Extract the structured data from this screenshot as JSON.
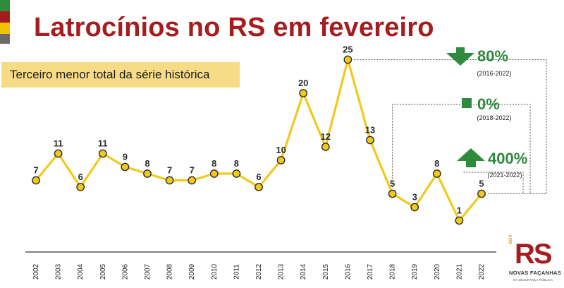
{
  "header": {
    "title": "Latrocínios no RS em fevereiro",
    "subtitle": "Terceiro menor total da série histórica"
  },
  "chart_data": {
    "type": "line",
    "title": "Latrocínios no RS em fevereiro",
    "subtitle": "Terceiro menor total da série histórica",
    "categories": [
      "2002",
      "2003",
      "2004",
      "2005",
      "2006",
      "2007",
      "2008",
      "2009",
      "2010",
      "2011",
      "2012",
      "2013",
      "2014",
      "2015",
      "2016",
      "2017",
      "2018",
      "2019",
      "2020",
      "2021",
      "2022"
    ],
    "series": [
      {
        "values": [
          7,
          11,
          6,
          11,
          9,
          8,
          7,
          7,
          8,
          8,
          6,
          10,
          20,
          12,
          25,
          13,
          5,
          3,
          8,
          1,
          5
        ]
      }
    ],
    "ylim": [
      0,
      25
    ],
    "grid": false,
    "colors": {
      "line": "#f2c91b",
      "marker_stroke": "#2b2b2b",
      "marker_fill": "#f2c91b",
      "label": "#2b2b2b",
      "axis": "#333333"
    },
    "comparisons": [
      {
        "value": "80%",
        "period": "(2016-2022)",
        "direction": "down",
        "icon": "arrow-down-icon",
        "color": "#2e8b3d"
      },
      {
        "value": "0%",
        "period": "(2018-2022)",
        "direction": "flat",
        "icon": "square-icon",
        "color": "#2e8b3d"
      },
      {
        "value": "400%",
        "period": "(2021-2022)",
        "direction": "up",
        "icon": "arrow-up-icon",
        "color": "#2e8b3d"
      }
    ]
  },
  "logo": {
    "mark": "RS",
    "gov_text": "GOV",
    "line1": "NOVAS FAÇANHAS",
    "line2": "NA SEGURANÇA PÚBLICA"
  }
}
